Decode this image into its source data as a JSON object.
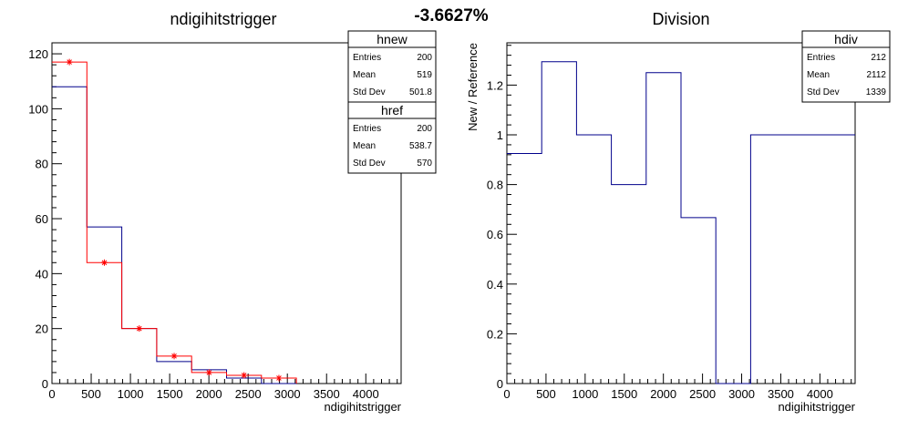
{
  "page_title": "-3.6627%",
  "colors": {
    "new": "#ff0000",
    "reference": "#00008b",
    "division": "#00008b",
    "axis": "#000000"
  },
  "chart_data": [
    {
      "type": "histogram",
      "title": "ndigihitstrigger",
      "xlabel": "ndigihitstrigger",
      "ylabel": "",
      "xlim": [
        0,
        4450
      ],
      "ylim": [
        0,
        124
      ],
      "bin_edges": [
        0,
        445,
        890,
        1335,
        1780,
        2225,
        2670,
        3115
      ],
      "xticks": [
        0,
        500,
        1000,
        1500,
        2000,
        2500,
        3000,
        3500,
        4000
      ],
      "yticks": [
        0,
        20,
        40,
        60,
        80,
        100,
        120
      ],
      "series": [
        {
          "name": "hnew",
          "style": "red step with star markers",
          "values": [
            117,
            44,
            20,
            10,
            4,
            3,
            2
          ]
        },
        {
          "name": "href",
          "style": "blue step",
          "values": [
            108,
            57,
            20,
            8,
            5,
            2,
            0
          ]
        }
      ],
      "stats_boxes": [
        {
          "name": "hnew",
          "rows": [
            {
              "label": "Entries",
              "value": "200"
            },
            {
              "label": "Mean",
              "value": "519"
            },
            {
              "label": "Std Dev",
              "value": "501.8"
            }
          ]
        },
        {
          "name": "href",
          "rows": [
            {
              "label": "Entries",
              "value": "200"
            },
            {
              "label": "Mean",
              "value": "538.7"
            },
            {
              "label": "Std Dev",
              "value": "570"
            }
          ]
        }
      ]
    },
    {
      "type": "histogram",
      "title": "Division",
      "xlabel": "ndigihitstrigger",
      "ylabel": "New / Reference",
      "xlim": [
        0,
        4450
      ],
      "ylim": [
        0,
        1.37
      ],
      "bin_edges": [
        0,
        445,
        890,
        1335,
        1780,
        2225,
        2670,
        3115,
        4450
      ],
      "xticks": [
        0,
        500,
        1000,
        1500,
        2000,
        2500,
        3000,
        3500,
        4000
      ],
      "yticks": [
        0,
        0.2,
        0.4,
        0.6,
        0.8,
        1,
        1.2
      ],
      "ytick_labels": [
        "0",
        "0.2",
        "0.4",
        "0.6",
        "0.8",
        "1",
        "1.2"
      ],
      "series": [
        {
          "name": "hdiv",
          "style": "blue step",
          "values": [
            0.925,
            1.294,
            1.0,
            0.8,
            1.25,
            0.667,
            0,
            1.0
          ]
        }
      ],
      "stats_boxes": [
        {
          "name": "hdiv",
          "rows": [
            {
              "label": "Entries",
              "value": "212"
            },
            {
              "label": "Mean",
              "value": "2112"
            },
            {
              "label": "Std Dev",
              "value": "1339"
            }
          ]
        }
      ]
    }
  ]
}
